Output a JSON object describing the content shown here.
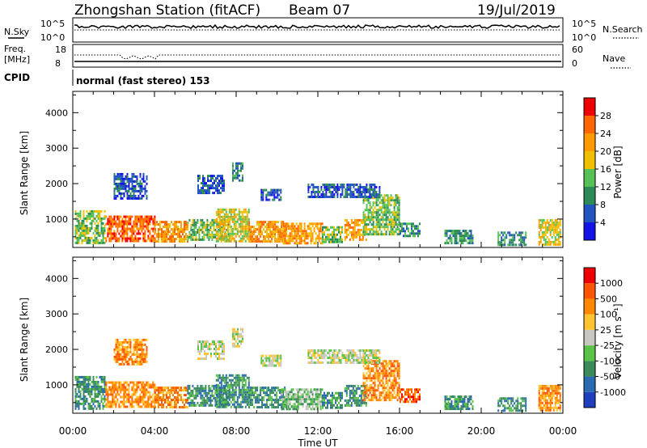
{
  "header": {
    "station": "Zhongshan Station (fitACF)",
    "beam": "Beam 07",
    "date": "19/Jul/2019"
  },
  "strips": {
    "nsky_label": "N.Sky",
    "nsky_ticks": [
      "10^5",
      "10^0"
    ],
    "nsearch_label": "N.Search",
    "nsearch_ticks": [
      "10^5",
      "10^0"
    ],
    "freq_label": "Freq.",
    "freq_unit": "[MHz]",
    "freq_ticks": [
      "18",
      "8"
    ],
    "nave_label": "Nave",
    "nave_ticks": [
      "60",
      "0"
    ],
    "cpid_label": "CPID",
    "cpid_text": "normal (fast stereo) 153"
  },
  "colors": {
    "power": [
      "#1414e6",
      "#2255c0",
      "#2e8b57",
      "#56c156",
      "#f0c000",
      "#ff9900",
      "#ff6600",
      "#ee0000"
    ],
    "velocity": [
      "#1f3fbf",
      "#2a6ab0",
      "#3a8a5a",
      "#59c247",
      "#c8c8c0",
      "#ffc430",
      "#ff8800",
      "#ff5500",
      "#ee0000"
    ]
  },
  "chart_data": [
    {
      "type": "heatmap",
      "panel": "power",
      "ylabel": "Slant Range [km]",
      "yticks": [
        1000,
        2000,
        3000,
        4000
      ],
      "ylim": [
        200,
        4600
      ],
      "xlim": [
        0,
        24
      ],
      "colorbar_label": "Power [dB]",
      "colorbar_ticks": [
        "4",
        "8",
        "12",
        "16",
        "20",
        "24",
        "28"
      ],
      "regions": [
        {
          "x": [
            0.1,
            1.6
          ],
          "y": [
            300,
            1250
          ],
          "level": 3
        },
        {
          "x": [
            1.6,
            4.0
          ],
          "y": [
            350,
            1100
          ],
          "level": 6
        },
        {
          "x": [
            4.0,
            5.6
          ],
          "y": [
            400,
            950
          ],
          "level": 5
        },
        {
          "x": [
            5.6,
            7.6
          ],
          "y": [
            450,
            1000
          ],
          "level": 3
        },
        {
          "x": [
            7.0,
            8.6
          ],
          "y": [
            400,
            1300
          ],
          "level": 4
        },
        {
          "x": [
            8.6,
            10.5
          ],
          "y": [
            350,
            950
          ],
          "level": 5
        },
        {
          "x": [
            10.2,
            12.2
          ],
          "y": [
            300,
            900
          ],
          "level": 5
        },
        {
          "x": [
            12.2,
            13.2
          ],
          "y": [
            350,
            800
          ],
          "level": 3
        },
        {
          "x": [
            13.3,
            14.4
          ],
          "y": [
            400,
            1000
          ],
          "level": 5
        },
        {
          "x": [
            14.2,
            16.0
          ],
          "y": [
            600,
            1700
          ],
          "level": 3
        },
        {
          "x": [
            16.0,
            17.0
          ],
          "y": [
            500,
            900
          ],
          "level": 2
        },
        {
          "x": [
            18.2,
            19.6
          ],
          "y": [
            300,
            700
          ],
          "level": 2
        },
        {
          "x": [
            20.8,
            22.2
          ],
          "y": [
            300,
            650
          ],
          "level": 2
        },
        {
          "x": [
            22.8,
            23.9
          ],
          "y": [
            300,
            1000
          ],
          "level": 4
        },
        {
          "x": [
            2.0,
            3.6
          ],
          "y": [
            1600,
            2300
          ],
          "level": 1
        },
        {
          "x": [
            6.1,
            7.4
          ],
          "y": [
            1750,
            2250
          ],
          "level": 1
        },
        {
          "x": [
            7.8,
            8.3
          ],
          "y": [
            2100,
            2600
          ],
          "level": 2
        },
        {
          "x": [
            9.2,
            10.2
          ],
          "y": [
            1550,
            1850
          ],
          "level": 1
        },
        {
          "x": [
            11.5,
            15.0
          ],
          "y": [
            1600,
            2000
          ],
          "level": 1
        }
      ]
    },
    {
      "type": "heatmap",
      "panel": "velocity",
      "ylabel": "Slant Range [km]",
      "yticks": [
        1000,
        2000,
        3000,
        4000
      ],
      "ylim": [
        200,
        4600
      ],
      "xlim": [
        0,
        24
      ],
      "xlabel": "Time UT",
      "xticks": [
        "00:00",
        "04:00",
        "08:00",
        "12:00",
        "16:00",
        "20:00",
        "00:00"
      ],
      "colorbar_label": "Velocity [m s⁻¹]",
      "colorbar_ticks": [
        "-1000",
        "-500",
        "-100",
        "-25",
        "25",
        "100",
        "500",
        "1000"
      ],
      "regions": [
        {
          "x": [
            0.1,
            1.6
          ],
          "y": [
            300,
            1250
          ],
          "level": 2
        },
        {
          "x": [
            1.6,
            4.0
          ],
          "y": [
            350,
            1100
          ],
          "level": 6
        },
        {
          "x": [
            4.0,
            5.6
          ],
          "y": [
            400,
            950
          ],
          "level": 6
        },
        {
          "x": [
            5.6,
            7.6
          ],
          "y": [
            450,
            1000
          ],
          "level": 2
        },
        {
          "x": [
            7.0,
            8.6
          ],
          "y": [
            400,
            1300
          ],
          "level": 2
        },
        {
          "x": [
            8.6,
            10.5
          ],
          "y": [
            350,
            950
          ],
          "level": 2
        },
        {
          "x": [
            10.2,
            12.2
          ],
          "y": [
            300,
            900
          ],
          "level": 3
        },
        {
          "x": [
            12.2,
            13.2
          ],
          "y": [
            350,
            800
          ],
          "level": 2
        },
        {
          "x": [
            13.3,
            14.4
          ],
          "y": [
            400,
            1000
          ],
          "level": 2
        },
        {
          "x": [
            14.2,
            16.0
          ],
          "y": [
            600,
            1700
          ],
          "level": 6
        },
        {
          "x": [
            16.0,
            17.0
          ],
          "y": [
            500,
            900
          ],
          "level": 7
        },
        {
          "x": [
            18.2,
            19.6
          ],
          "y": [
            300,
            700
          ],
          "level": 2
        },
        {
          "x": [
            20.8,
            22.2
          ],
          "y": [
            300,
            650
          ],
          "level": 2
        },
        {
          "x": [
            22.8,
            23.9
          ],
          "y": [
            300,
            1000
          ],
          "level": 6
        },
        {
          "x": [
            2.0,
            3.6
          ],
          "y": [
            1600,
            2300
          ],
          "level": 6
        },
        {
          "x": [
            6.1,
            7.4
          ],
          "y": [
            1750,
            2250
          ],
          "level": 4
        },
        {
          "x": [
            7.8,
            8.3
          ],
          "y": [
            2100,
            2600
          ],
          "level": 4
        },
        {
          "x": [
            9.2,
            10.2
          ],
          "y": [
            1550,
            1850
          ],
          "level": 4
        },
        {
          "x": [
            11.5,
            15.0
          ],
          "y": [
            1600,
            2000
          ],
          "level": 4
        }
      ]
    }
  ]
}
